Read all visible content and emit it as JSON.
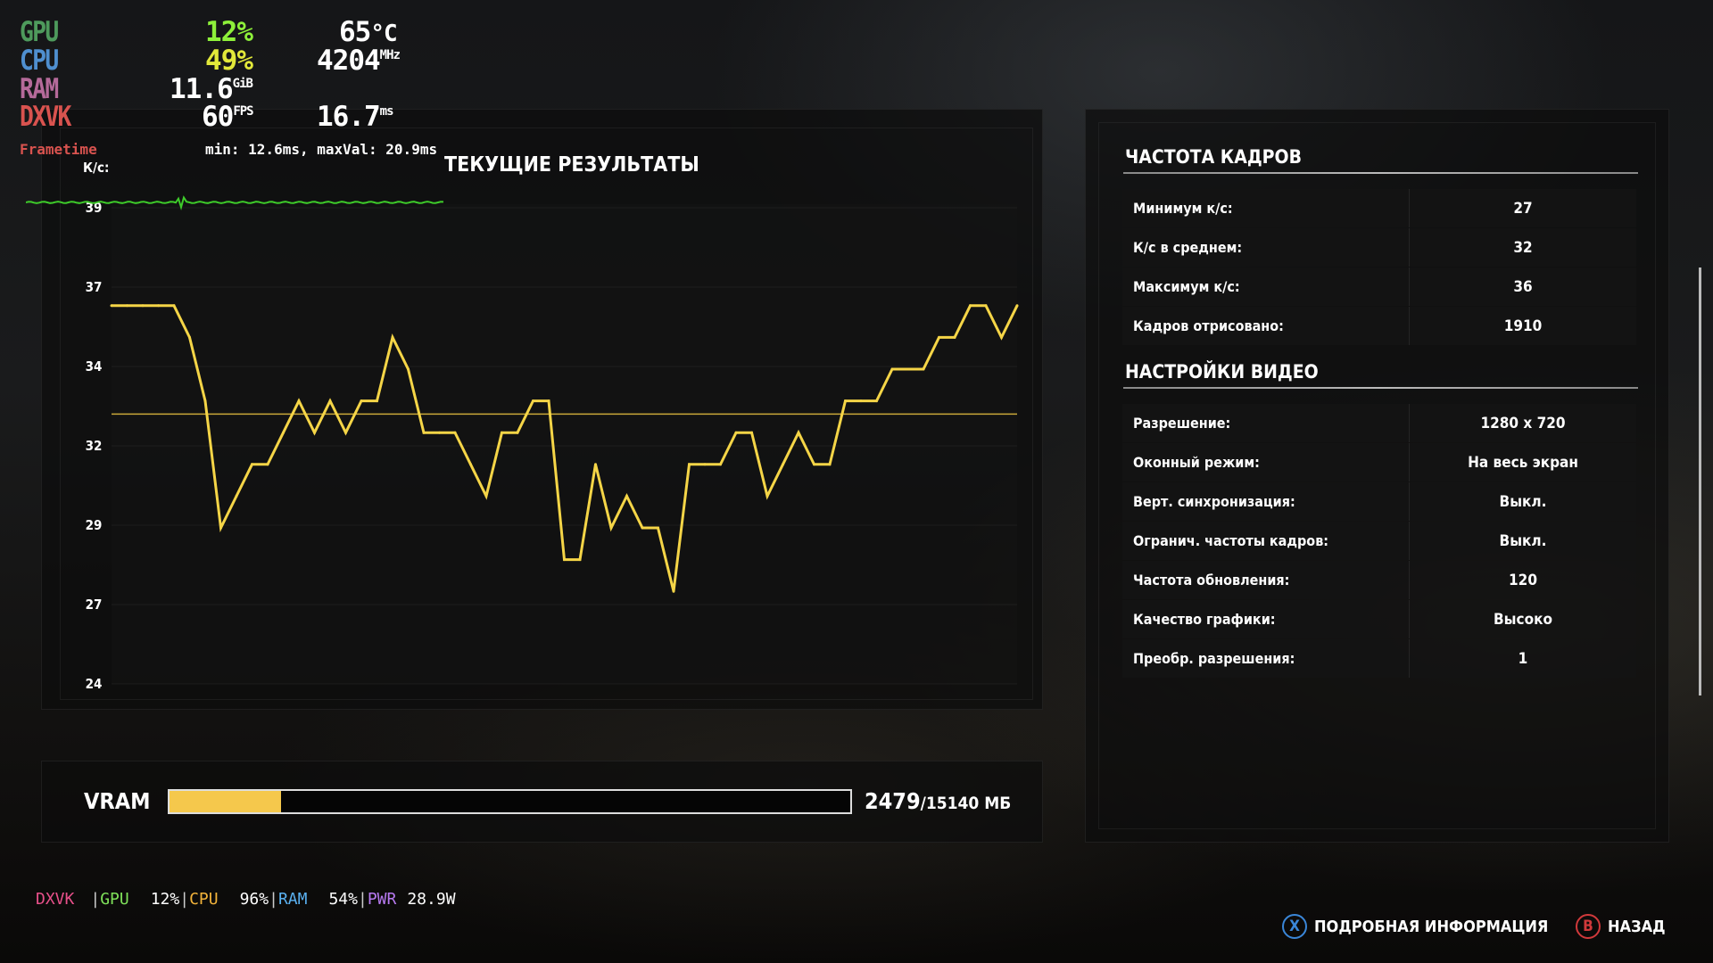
{
  "hud": {
    "gpu": {
      "label": "GPU",
      "load": "12%",
      "temp": "65",
      "temp_unit": "°C"
    },
    "cpu": {
      "label": "CPU",
      "load": "49%",
      "clock": "4204",
      "clock_unit": "MHz"
    },
    "ram": {
      "label": "RAM",
      "value": "11.6",
      "unit": "GiB"
    },
    "dxvk": {
      "label": "DXVK",
      "fps": "60",
      "fps_unit": "FPS",
      "frametime": "16.7",
      "frametime_unit": "ms"
    },
    "frametime": {
      "label": "Frametime",
      "stats": "min: 12.6ms, maxVal: 20.9ms"
    },
    "colors": {
      "gpu": "#4e9a5c",
      "cpu": "#4f8fcf",
      "ram": "#b56a9a",
      "dxvk": "#d9534f",
      "gpu_load": "#8ef03a",
      "cpu_load": "#e2e83a",
      "frametime_line": "#3ecb2a"
    }
  },
  "results": {
    "title": "ТЕКУЩИЕ РЕЗУЛЬТАТЫ",
    "chart_data": {
      "type": "line",
      "ylabel": "К/с:",
      "yticks": [
        39,
        37,
        34,
        32,
        29,
        27,
        24
      ],
      "ylim": [
        24,
        39
      ],
      "grid": true,
      "line_color": "#f5d547",
      "average_line": 32.5,
      "values": [
        36,
        36,
        36,
        36,
        36,
        35,
        33,
        29,
        30,
        31,
        31,
        32,
        33,
        32,
        33,
        32,
        33,
        33,
        35,
        34,
        32,
        32,
        32,
        31,
        30,
        32,
        32,
        33,
        33,
        28,
        28,
        31,
        29,
        30,
        29,
        29,
        27,
        31,
        31,
        31,
        32,
        32,
        30,
        31,
        32,
        31,
        31,
        33,
        33,
        33,
        34,
        34,
        34,
        35,
        35,
        36,
        36,
        35,
        36
      ]
    },
    "vram": {
      "label": "VRAM",
      "used": "2479",
      "total": "/15140 МБ",
      "fill_fraction": 0.164,
      "fill_color": "#f5c84c"
    }
  },
  "framerate": {
    "title": "ЧАСТОТА КАДРОВ",
    "rows": [
      {
        "k": "Минимум к/с:",
        "v": "27"
      },
      {
        "k": "К/с в среднем:",
        "v": "32"
      },
      {
        "k": "Максимум к/с:",
        "v": "36"
      },
      {
        "k": "Кадров отрисовано:",
        "v": "1910"
      }
    ]
  },
  "video": {
    "title": "НАСТРОЙКИ ВИДЕО",
    "rows": [
      {
        "k": "Разрешение:",
        "v": "1280 x 720"
      },
      {
        "k": "Оконный режим:",
        "v": "На весь экран"
      },
      {
        "k": "Верт. синхронизация:",
        "v": "Выкл."
      },
      {
        "k": "Огранич. частоты кадров:",
        "v": "Выкл."
      },
      {
        "k": "Частота обновления:",
        "v": "120"
      },
      {
        "k": "Качество графики:",
        "v": "Высоко"
      },
      {
        "k": "Преобр. разрешения:",
        "v": "1"
      }
    ]
  },
  "bottom_bar": {
    "dxvk": "DXVK",
    "sep": "|",
    "gpu": "GPU",
    "gpu_val": "12%",
    "cpu": "CPU",
    "cpu_val": "96%",
    "ram": "RAM",
    "ram_val": "54%",
    "pwr": "PWR",
    "pwr_val": "28.9W"
  },
  "buttons": {
    "details": {
      "glyph": "X",
      "label": "ПОДРОБНАЯ ИНФОРМАЦИЯ",
      "color": "#3a86d8"
    },
    "back": {
      "glyph": "B",
      "label": "НАЗАД",
      "color": "#d0393b"
    }
  }
}
